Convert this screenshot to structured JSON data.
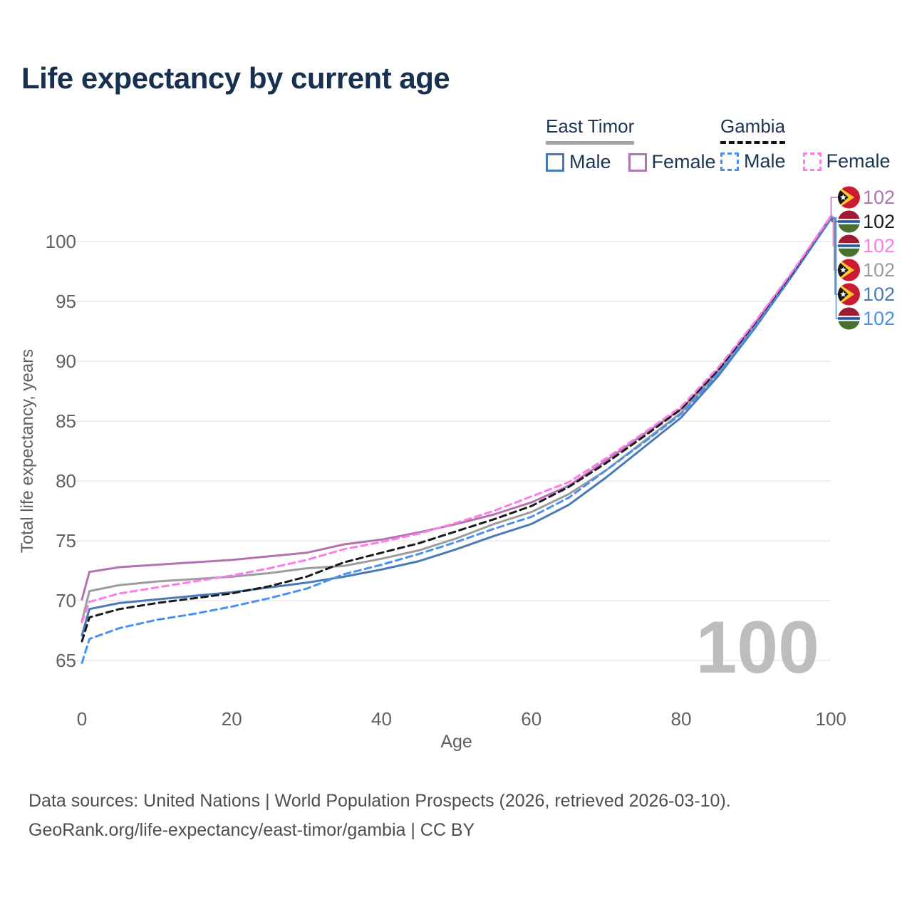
{
  "title": "Life expectancy by current age",
  "colors": {
    "title": "#17304f",
    "legend_text": "#1c3552",
    "axis_text": "#5f5f5f",
    "grid": "#e9e9e9",
    "watermark": "#bdbdbd",
    "footer_text": "#4f4f4f",
    "east_timor_male": "#4a79b8",
    "east_timor_female": "#b273b1",
    "east_timor_total": "#9c9c9c",
    "gambia_male": "#4a90f0",
    "gambia_female": "#fb7de7",
    "gambia_total": "#1a1a1a",
    "flag_et_red": "#cb1b33",
    "flag_et_yellow": "#fdc82f",
    "flag_et_black": "#16161a",
    "flag_gm_red": "#9d1b33",
    "flag_gm_blue": "#2057a7",
    "flag_gm_green": "#47712f"
  },
  "legend": {
    "groups": [
      {
        "id": "east-timor",
        "title": "East Timor",
        "underline": "solid",
        "items": [
          {
            "label": "Male",
            "series": "east_timor_male"
          },
          {
            "label": "Female",
            "series": "east_timor_female"
          }
        ]
      },
      {
        "id": "gambia",
        "title": "Gambia",
        "underline": "dashed",
        "items": [
          {
            "label": "Male",
            "series": "gambia_male"
          },
          {
            "label": "Female",
            "series": "gambia_female"
          }
        ]
      }
    ]
  },
  "watermark": "100",
  "chart_data": {
    "type": "line",
    "title": "Life expectancy by current age",
    "xlabel": "Age",
    "ylabel": "Total life expectancy, years",
    "x_ticks": [
      0,
      20,
      40,
      60,
      80,
      100
    ],
    "y_ticks": [
      65,
      70,
      75,
      80,
      85,
      90,
      95,
      100
    ],
    "xlim": [
      0,
      107
    ],
    "ylim": [
      63.5,
      103.5
    ],
    "grid": "horizontal-only",
    "legend_position": "top-right",
    "ages": [
      0,
      1,
      5,
      10,
      15,
      20,
      25,
      30,
      35,
      40,
      45,
      50,
      55,
      60,
      65,
      70,
      75,
      80,
      85,
      90,
      95,
      100
    ],
    "series": [
      {
        "id": "east_timor_total",
        "name": "East Timor (both sexes)",
        "color": "#9c9c9c",
        "dashed": false,
        "values": [
          68.3,
          70.8,
          71.3,
          71.6,
          71.8,
          72.0,
          72.3,
          72.7,
          72.9,
          73.5,
          74.2,
          75.2,
          76.4,
          77.4,
          78.9,
          80.9,
          83.3,
          85.7,
          89.1,
          93.1,
          97.4,
          102.0
        ]
      },
      {
        "id": "east_timor_female",
        "name": "East Timor Female",
        "color": "#b273b1",
        "dashed": false,
        "values": [
          70.1,
          72.4,
          72.8,
          73.0,
          73.2,
          73.4,
          73.7,
          74.0,
          74.7,
          75.1,
          75.7,
          76.4,
          77.2,
          78.2,
          79.6,
          81.7,
          83.9,
          86.0,
          89.3,
          93.3,
          97.5,
          102.1
        ]
      },
      {
        "id": "east_timor_male",
        "name": "East Timor Male",
        "color": "#4a79b8",
        "dashed": false,
        "values": [
          67.1,
          69.3,
          69.8,
          70.1,
          70.4,
          70.7,
          71.1,
          71.5,
          72.0,
          72.6,
          73.3,
          74.3,
          75.4,
          76.4,
          78.0,
          80.3,
          82.8,
          85.3,
          88.8,
          92.9,
          97.3,
          101.9
        ]
      },
      {
        "id": "gambia_male",
        "name": "Gambia Male",
        "color": "#4a90f0",
        "dashed": true,
        "values": [
          64.8,
          66.8,
          67.7,
          68.4,
          68.9,
          69.5,
          70.2,
          71.0,
          72.2,
          73.0,
          73.9,
          74.9,
          76.0,
          77.0,
          78.6,
          80.9,
          83.2,
          85.6,
          89.0,
          93.0,
          97.4,
          102.0
        ]
      },
      {
        "id": "gambia_total",
        "name": "Gambia (both sexes)",
        "color": "#1a1a1a",
        "dashed": true,
        "values": [
          66.6,
          68.6,
          69.3,
          69.8,
          70.2,
          70.6,
          71.2,
          72.0,
          73.2,
          74.0,
          74.8,
          75.8,
          76.8,
          77.9,
          79.5,
          81.5,
          83.7,
          86.0,
          89.3,
          93.3,
          97.5,
          102.1
        ]
      },
      {
        "id": "gambia_female",
        "name": "Gambia Female",
        "color": "#fb7de7",
        "dashed": true,
        "values": [
          68.2,
          69.9,
          70.6,
          71.1,
          71.6,
          72.1,
          72.7,
          73.4,
          74.3,
          74.9,
          75.6,
          76.5,
          77.5,
          78.7,
          79.9,
          81.9,
          84.0,
          86.2,
          89.5,
          93.4,
          97.6,
          102.1
        ]
      }
    ],
    "end_labels": [
      {
        "series": "east_timor_female",
        "flag": "east-timor",
        "text": "102"
      },
      {
        "series": "gambia_total",
        "flag": "gambia",
        "text": "102"
      },
      {
        "series": "gambia_female",
        "flag": "gambia",
        "text": "102"
      },
      {
        "series": "east_timor_total",
        "flag": "east-timor",
        "text": "102"
      },
      {
        "series": "east_timor_male",
        "flag": "east-timor",
        "text": "102"
      },
      {
        "series": "gambia_male",
        "flag": "gambia",
        "text": "102"
      }
    ]
  },
  "footer": {
    "line1": "Data sources: United Nations | World Population Prospects (2026, retrieved 2026-03-10).",
    "line2": "GeoRank.org/life-expectancy/east-timor/gambia | CC BY"
  }
}
